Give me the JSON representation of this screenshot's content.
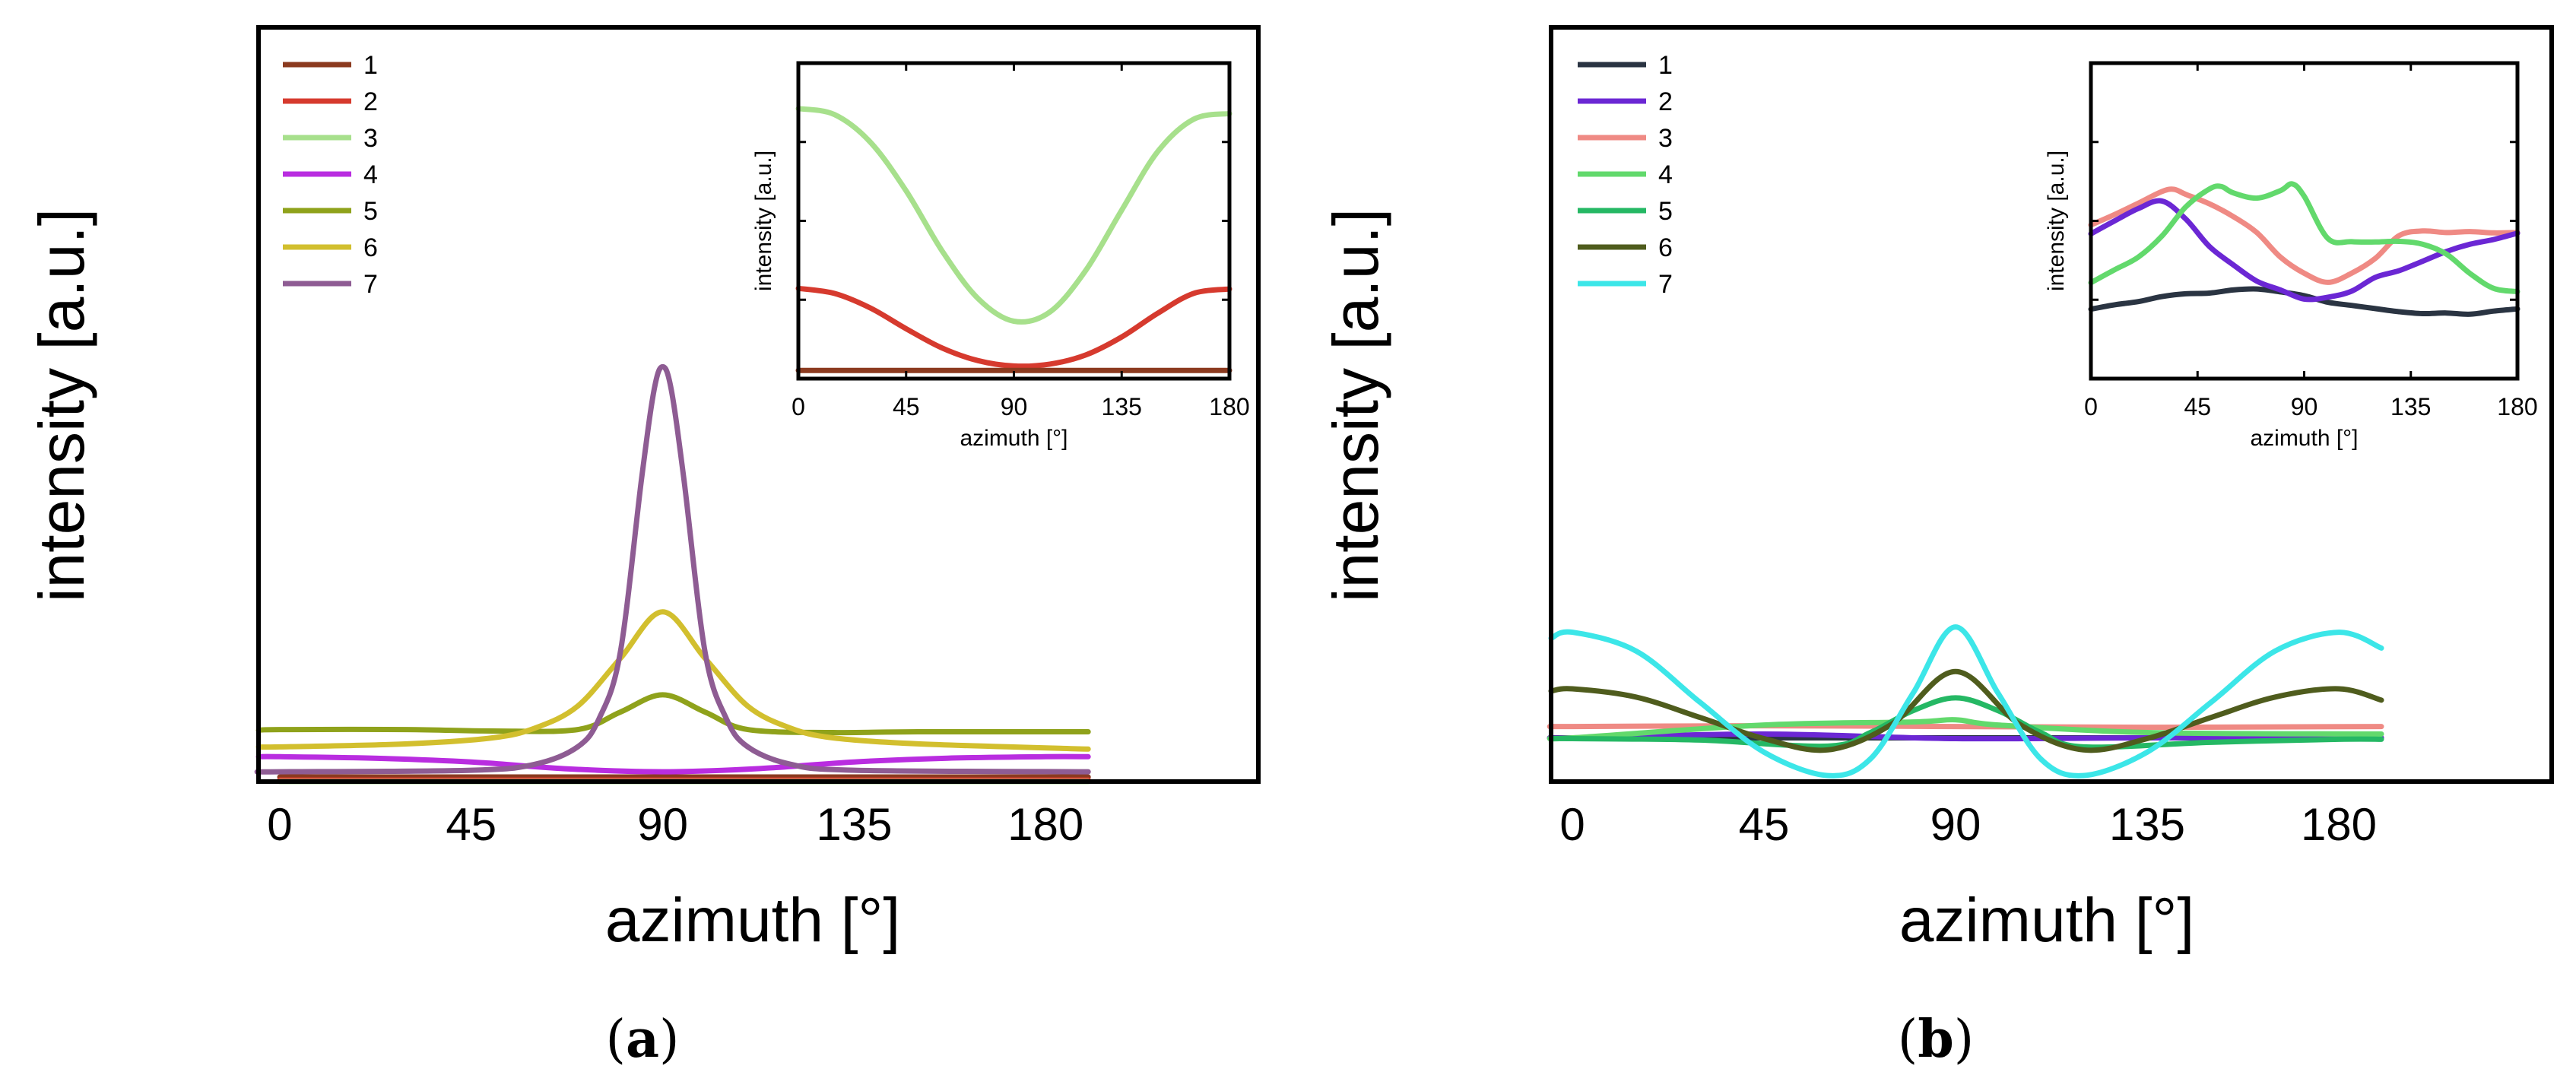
{
  "figure": {
    "panels": [
      {
        "label_prefix": "(",
        "label_letter": "a",
        "label_suffix": ")"
      },
      {
        "label_prefix": "(",
        "label_letter": "b",
        "label_suffix": ")"
      }
    ]
  },
  "chart_data": [
    {
      "type": "line",
      "panel": "a",
      "xlabel": "azimuth [°]",
      "ylabel": "intensity [a.u.]",
      "xticks": [
        "0",
        "45",
        "90",
        "135",
        "180"
      ],
      "xlim": [
        -5,
        230
      ],
      "ylim": [
        0,
        100
      ],
      "legend": {
        "position": "top-left",
        "entries": [
          "1",
          "2",
          "3",
          "4",
          "5",
          "6",
          "7"
        ]
      },
      "series": [
        {
          "name": "1",
          "color": "#8b3a1f",
          "x": [
            0,
            45,
            90,
            135,
            190
          ],
          "y": [
            0.6,
            0.6,
            0.6,
            0.6,
            0.6
          ]
        },
        {
          "name": "2",
          "color": "#d63a2e",
          "x": [
            0,
            45,
            90,
            135,
            190
          ],
          "y": [
            0.2,
            0.2,
            0.2,
            0.2,
            0.2
          ]
        },
        {
          "name": "3",
          "color": "#a7e08c",
          "x": [
            0,
            45,
            90,
            135,
            190
          ],
          "y": [
            0,
            0,
            0,
            0,
            0
          ]
        },
        {
          "name": "4",
          "color": "#b92de0",
          "x": [
            -5,
            0,
            22,
            45,
            67,
            90,
            112,
            135,
            157,
            180,
            190
          ],
          "y": [
            3.3,
            3.3,
            3.1,
            2.6,
            1.7,
            1.3,
            1.7,
            2.6,
            3.1,
            3.3,
            3.3
          ]
        },
        {
          "name": "5",
          "color": "#8fa21b",
          "x": [
            -5,
            0,
            30,
            50,
            70,
            80,
            90,
            100,
            110,
            130,
            150,
            190
          ],
          "y": [
            6.8,
            6.9,
            6.9,
            6.7,
            6.9,
            9.2,
            11.5,
            9.2,
            6.9,
            6.5,
            6.6,
            6.6
          ]
        },
        {
          "name": "6",
          "color": "#d2bf2e",
          "x": [
            -5,
            0,
            30,
            50,
            60,
            70,
            80,
            90,
            100,
            110,
            120,
            130,
            150,
            190
          ],
          "y": [
            4.6,
            4.6,
            5.0,
            5.8,
            7.1,
            10.0,
            16.3,
            22.5,
            16.3,
            10.0,
            7.1,
            5.8,
            5.0,
            4.3
          ]
        },
        {
          "name": "7",
          "color": "#8e5c93",
          "x": [
            -5,
            0,
            45,
            60,
            70,
            75,
            80,
            85,
            88,
            90,
            92,
            95,
            100,
            105,
            110,
            120,
            135,
            190
          ],
          "y": [
            1.3,
            1.3,
            1.5,
            2.3,
            4.6,
            8.3,
            17.0,
            40.0,
            52.0,
            55.0,
            52.0,
            40.0,
            17.0,
            8.3,
            4.6,
            2.3,
            1.5,
            1.3
          ]
        }
      ],
      "inset": {
        "type": "line",
        "xlabel": "azimuth [°]",
        "ylabel": "intensity [a.u.]",
        "xticks": [
          "0",
          "45",
          "90",
          "135",
          "180"
        ],
        "xlim": [
          0,
          180
        ],
        "ylim": [
          0,
          100
        ],
        "series": [
          {
            "name": "3",
            "color": "#a7e08c",
            "x": [
              0,
              15,
              30,
              45,
              60,
              75,
              90,
              105,
              120,
              135,
              150,
              165,
              180
            ],
            "y": [
              85.6,
              83.7,
              75.0,
              59.5,
              40.5,
              25.4,
              18.2,
              21.1,
              34.3,
              53.4,
              71.9,
              82.2,
              84.0
            ]
          },
          {
            "name": "2",
            "color": "#d63a2e",
            "x": [
              0,
              15,
              30,
              45,
              60,
              75,
              90,
              105,
              120,
              135,
              150,
              165,
              180
            ],
            "y": [
              28.6,
              27.0,
              22.4,
              15.8,
              9.7,
              5.7,
              4.0,
              4.6,
              7.5,
              13.2,
              20.7,
              27.0,
              28.4
            ]
          },
          {
            "name": "1",
            "color": "#8b3a1f",
            "x": [
              0,
              90,
              180
            ],
            "y": [
              2.6,
              2.6,
              2.6
            ]
          }
        ]
      }
    },
    {
      "type": "line",
      "panel": "b",
      "xlabel": "azimuth [°]",
      "ylabel": "intensity [a.u.]",
      "xticks": [
        "0",
        "45",
        "90",
        "135",
        "180"
      ],
      "xlim": [
        -5,
        230
      ],
      "ylim": [
        0,
        100
      ],
      "legend": {
        "position": "top-left",
        "entries": [
          "1",
          "2",
          "3",
          "4",
          "5",
          "6",
          "7"
        ]
      },
      "series": [
        {
          "name": "1",
          "color": "#2a3442",
          "x": [
            -5,
            0,
            45,
            90,
            135,
            190
          ],
          "y": [
            5.8,
            5.8,
            5.8,
            5.8,
            5.8,
            5.8
          ]
        },
        {
          "name": "2",
          "color": "#6b27d4",
          "x": [
            -5,
            0,
            45,
            90,
            135,
            190
          ],
          "y": [
            5.8,
            5.8,
            6.3,
            5.7,
            5.8,
            5.8
          ]
        },
        {
          "name": "3",
          "color": "#ef8a84",
          "x": [
            -5,
            0,
            45,
            90,
            135,
            190
          ],
          "y": [
            7.3,
            7.3,
            7.4,
            7.3,
            7.2,
            7.3
          ]
        },
        {
          "name": "4",
          "color": "#62d96c",
          "x": [
            -5,
            0,
            45,
            80,
            90,
            100,
            135,
            190
          ],
          "y": [
            5.8,
            5.8,
            7.5,
            7.9,
            8.2,
            7.5,
            6.5,
            6.3
          ]
        },
        {
          "name": "5",
          "color": "#25b864",
          "x": [
            -5,
            0,
            30,
            60,
            70,
            80,
            90,
            100,
            110,
            120,
            150,
            180,
            190
          ],
          "y": [
            5.7,
            5.7,
            5.5,
            4.7,
            6.5,
            9.4,
            11.1,
            9.4,
            6.5,
            4.6,
            5.2,
            5.6,
            5.6
          ]
        },
        {
          "name": "6",
          "color": "#4f5c1d",
          "x": [
            -5,
            0,
            15,
            30,
            45,
            60,
            75,
            90,
            105,
            120,
            135,
            150,
            165,
            180,
            190
          ],
          "y": [
            12.0,
            12.3,
            11.2,
            8.5,
            5.7,
            4.2,
            7.6,
            14.6,
            7.6,
            4.2,
            5.7,
            8.5,
            11.2,
            12.3,
            10.8
          ]
        },
        {
          "name": "7",
          "color": "#3ce6e8",
          "x": [
            -5,
            0,
            15,
            30,
            45,
            60,
            70,
            80,
            90,
            100,
            110,
            120,
            135,
            150,
            165,
            180,
            190
          ],
          "y": [
            19.0,
            19.8,
            17.3,
            10.5,
            3.9,
            0.8,
            3.0,
            11.7,
            20.5,
            11.7,
            3.0,
            0.8,
            3.9,
            10.5,
            17.3,
            19.8,
            17.7
          ]
        }
      ],
      "inset": {
        "type": "line",
        "xlabel": "azimuth [°]",
        "ylabel": "intensity [a.u.]",
        "xticks": [
          "0",
          "45",
          "90",
          "135",
          "180"
        ],
        "xlim": [
          0,
          180
        ],
        "ylim": [
          0,
          100
        ],
        "series": [
          {
            "name": "1",
            "color": "#2a3442",
            "x": [
              0,
              10,
              20,
              30,
              40,
              50,
              60,
              70,
              80,
              90,
              100,
              110,
              120,
              130,
              140,
              150,
              160,
              170,
              180
            ],
            "y": [
              22.0,
              23.4,
              24.4,
              26.0,
              26.9,
              27.1,
              28.1,
              28.4,
              27.5,
              26.3,
              24.2,
              23.2,
              22.2,
              21.2,
              20.6,
              20.8,
              20.4,
              21.4,
              22.1
            ]
          },
          {
            "name": "3",
            "color": "#ef8a84",
            "x": [
              0,
              10,
              20,
              30,
              35,
              40,
              50,
              60,
              70,
              80,
              90,
              100,
              110,
              120,
              130,
              140,
              150,
              160,
              170,
              180
            ],
            "y": [
              48.7,
              52.0,
              55.6,
              59.3,
              60.0,
              58.4,
              55.4,
              51.4,
              46.3,
              38.5,
              33.4,
              30.5,
              33.4,
              38.1,
              45.3,
              46.8,
              46.3,
              46.6,
              46.2,
              46.3
            ]
          },
          {
            "name": "2",
            "color": "#6b27d4",
            "x": [
              0,
              10,
              20,
              30,
              40,
              50,
              60,
              70,
              80,
              90,
              100,
              110,
              120,
              130,
              140,
              150,
              160,
              170,
              180
            ],
            "y": [
              45.9,
              50.0,
              53.9,
              56.3,
              50.6,
              41.9,
              36.1,
              30.9,
              28.1,
              25.2,
              25.8,
              27.7,
              32.1,
              34.2,
              37.2,
              40.3,
              42.6,
              44.1,
              46.1
            ]
          },
          {
            "name": "4",
            "color": "#62d96c",
            "x": [
              0,
              10,
              20,
              30,
              40,
              50,
              55,
              60,
              70,
              80,
              85,
              90,
              100,
              110,
              120,
              130,
              140,
              150,
              160,
              170,
              180
            ],
            "y": [
              30.4,
              34.5,
              38.5,
              45.2,
              54.4,
              60.1,
              60.9,
              58.9,
              57.2,
              59.6,
              61.7,
              57.8,
              44.4,
              43.4,
              43.3,
              43.5,
              42.6,
              39.5,
              33.3,
              28.6,
              27.6
            ]
          }
        ]
      }
    }
  ]
}
